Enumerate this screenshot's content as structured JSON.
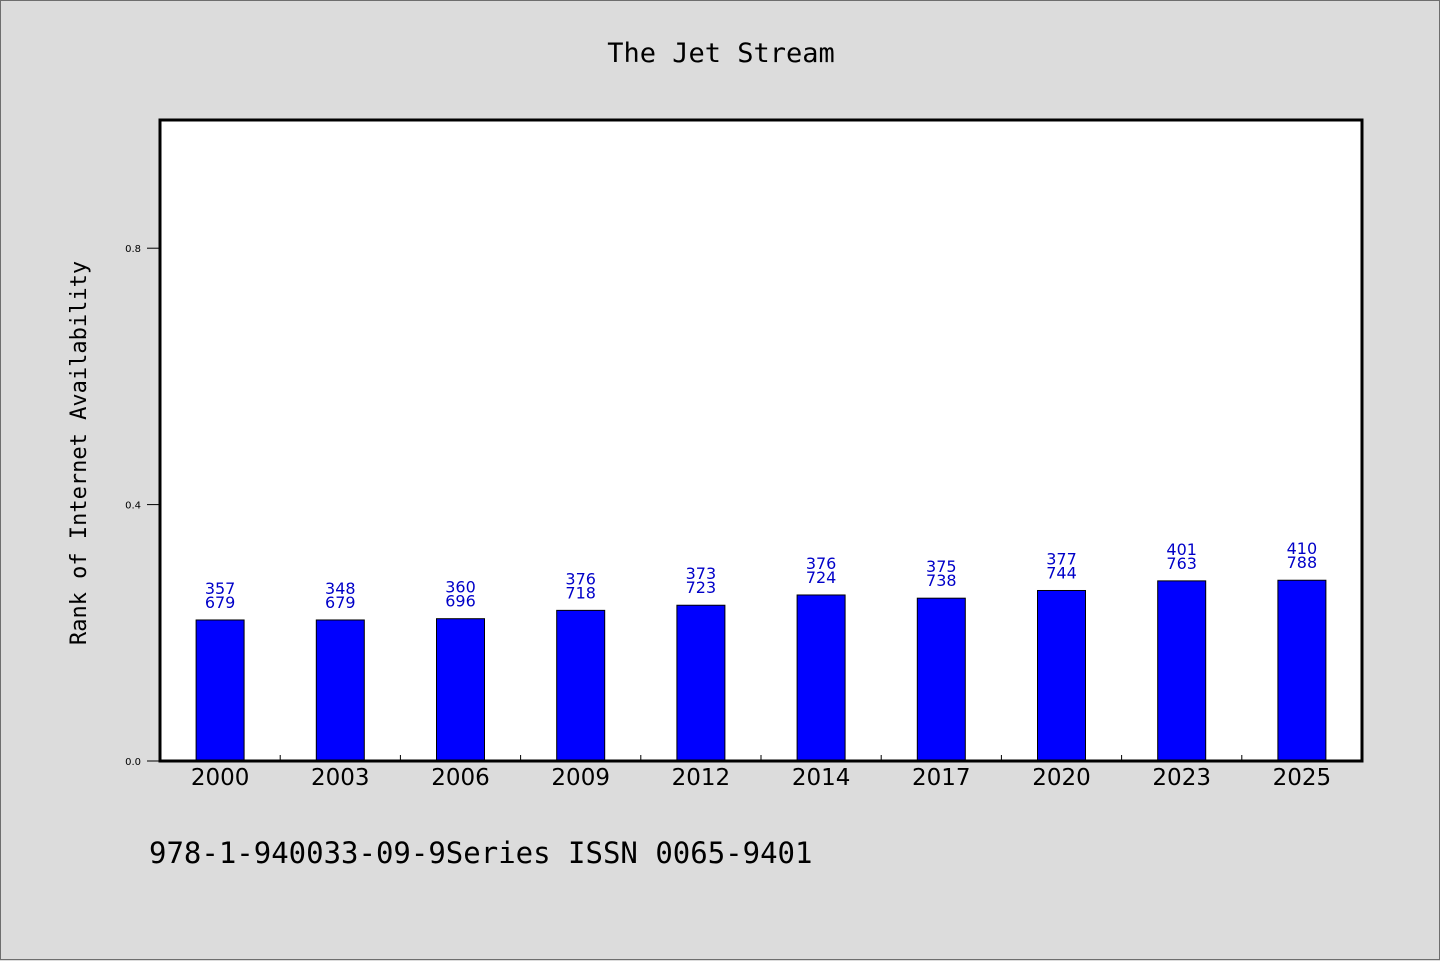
{
  "chart_data": {
    "type": "bar",
    "title": "The Jet Stream",
    "xlabel": "",
    "ylabel": "Rank of Internet Availability",
    "categories": [
      "2000",
      "2003",
      "2006",
      "2009",
      "2012",
      "2014",
      "2017",
      "2020",
      "2023",
      "2025"
    ],
    "values": [
      0.22,
      0.22,
      0.222,
      0.235,
      0.243,
      0.259,
      0.254,
      0.266,
      0.281,
      0.282
    ],
    "data_labels": [
      [
        "357",
        "679"
      ],
      [
        "348",
        "679"
      ],
      [
        "360",
        "696"
      ],
      [
        "376",
        "718"
      ],
      [
        "373",
        "723"
      ],
      [
        "376",
        "724"
      ],
      [
        "375",
        "738"
      ],
      [
        "377",
        "744"
      ],
      [
        "401",
        "763"
      ],
      [
        "410",
        "788"
      ]
    ],
    "y_ticks": [
      "0.0",
      "0.4",
      "0.8"
    ],
    "y_tick_values": [
      0.0,
      0.4,
      0.8
    ],
    "ylim": [
      0,
      1.0
    ],
    "grid": false,
    "bar_color": "#0000ff",
    "label_color": "#0000c8",
    "background_color": "#dcdcdc"
  },
  "footer_text": "978-1-940033-09-9Series ISSN 0065-9401"
}
